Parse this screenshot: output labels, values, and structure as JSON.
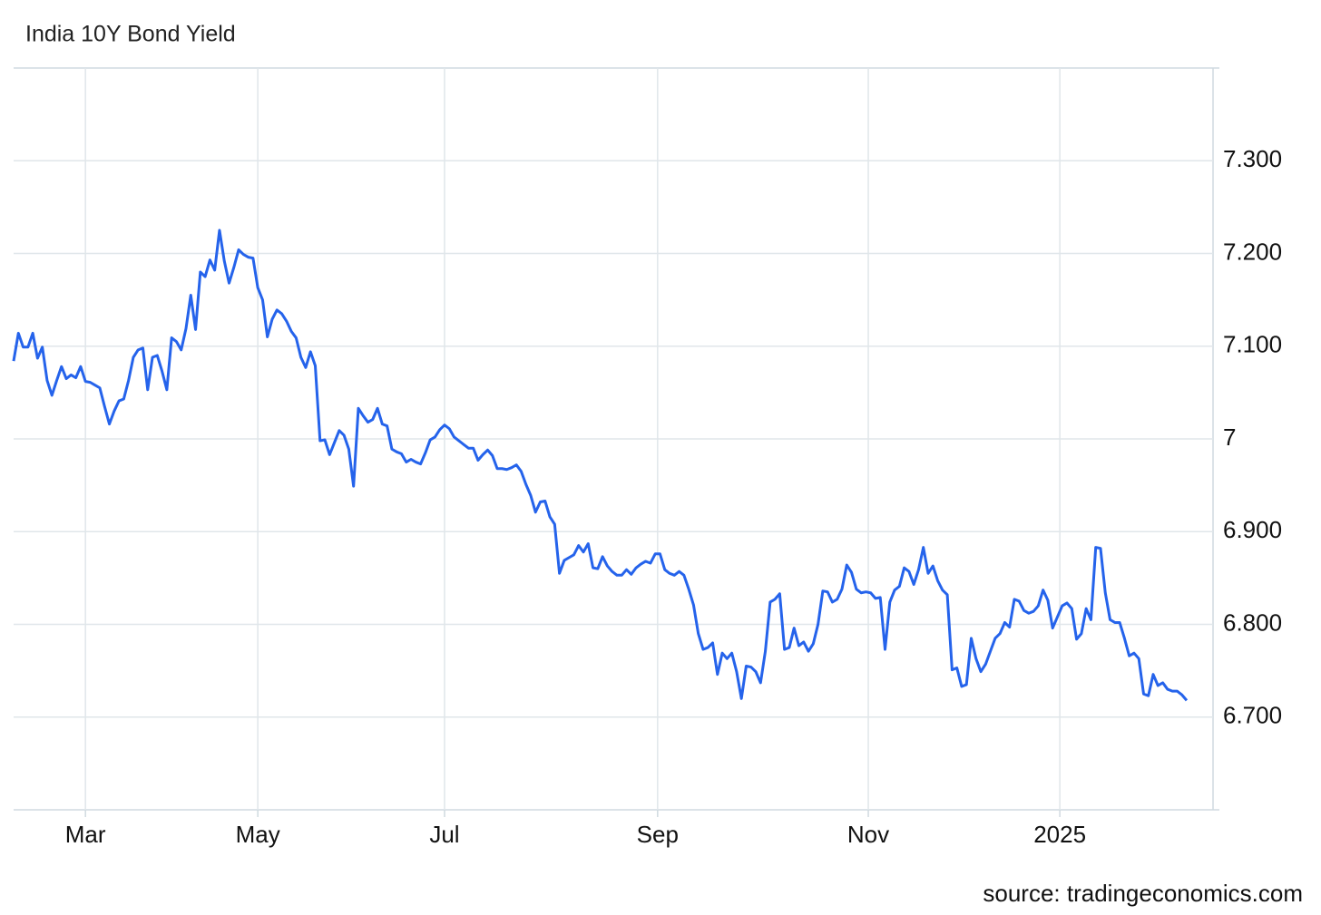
{
  "chart_data": {
    "type": "line",
    "title": "India 10Y Bond Yield",
    "source": "source: tradingeconomics.com",
    "color": "#2563eb",
    "grid": true,
    "xlim": [
      0,
      250.5
    ],
    "xticks": [
      {
        "value": 15,
        "label": "Mar"
      },
      {
        "value": 51,
        "label": "May"
      },
      {
        "value": 90,
        "label": "Jul"
      },
      {
        "value": 134.5,
        "label": "Sep"
      },
      {
        "value": 178.5,
        "label": "Nov"
      },
      {
        "value": 218.5,
        "label": "2025"
      }
    ],
    "ylim": [
      6.6,
      7.4
    ],
    "yticks": [
      {
        "value": 6.7,
        "label": "6.700"
      },
      {
        "value": 6.8,
        "label": "6.800"
      },
      {
        "value": 6.9,
        "label": "6.900"
      },
      7,
      {
        "value": 7.1,
        "label": "7.100"
      },
      {
        "value": 7.2,
        "label": "7.200"
      },
      {
        "value": 7.3,
        "label": "7.300"
      }
    ],
    "values": [
      7.084,
      7.114,
      7.099,
      7.099,
      7.114,
      7.087,
      7.099,
      7.063,
      7.047,
      7.063,
      7.078,
      7.065,
      7.069,
      7.066,
      7.078,
      7.062,
      7.061,
      7.058,
      7.055,
      7.035,
      7.016,
      7.03,
      7.041,
      7.043,
      7.063,
      7.088,
      7.096,
      7.098,
      7.053,
      7.088,
      7.09,
      7.073,
      7.053,
      7.109,
      7.105,
      7.096,
      7.119,
      7.155,
      7.118,
      7.18,
      7.175,
      7.193,
      7.182,
      7.225,
      7.192,
      7.168,
      7.185,
      7.204,
      7.199,
      7.196,
      7.195,
      7.163,
      7.15,
      7.11,
      7.129,
      7.139,
      7.135,
      7.127,
      7.116,
      7.109,
      7.088,
      7.077,
      7.094,
      7.079,
      6.998,
      6.999,
      6.983,
      6.996,
      7.009,
      7.004,
      6.989,
      6.949,
      7.033,
      7.025,
      7.018,
      7.021,
      7.033,
      7.016,
      7.014,
      6.989,
      6.986,
      6.984,
      6.975,
      6.978,
      6.975,
      6.973,
      6.985,
      6.999,
      7.002,
      7.01,
      7.015,
      7.011,
      7.002,
      6.998,
      6.994,
      6.99,
      6.99,
      6.977,
      6.983,
      6.988,
      6.982,
      6.968,
      6.968,
      6.967,
      6.969,
      6.972,
      6.965,
      6.951,
      6.939,
      6.921,
      6.932,
      6.933,
      6.916,
      6.908,
      6.855,
      6.869,
      6.872,
      6.875,
      6.885,
      6.878,
      6.887,
      6.861,
      6.86,
      6.873,
      6.863,
      6.857,
      6.853,
      6.853,
      6.859,
      6.854,
      6.861,
      6.865,
      6.868,
      6.866,
      6.876,
      6.876,
      6.859,
      6.855,
      6.853,
      6.857,
      6.853,
      6.838,
      6.821,
      6.79,
      6.773,
      6.775,
      6.78,
      6.746,
      6.769,
      6.763,
      6.769,
      6.749,
      6.72,
      6.755,
      6.754,
      6.749,
      6.737,
      6.771,
      6.824,
      6.827,
      6.833,
      6.773,
      6.775,
      6.796,
      6.777,
      6.781,
      6.771,
      6.779,
      6.8,
      6.836,
      6.835,
      6.824,
      6.827,
      6.838,
      6.864,
      6.856,
      6.838,
      6.834,
      6.835,
      6.834,
      6.828,
      6.829,
      6.773,
      6.824,
      6.837,
      6.841,
      6.861,
      6.857,
      6.843,
      6.859,
      6.883,
      6.855,
      6.863,
      6.847,
      6.837,
      6.832,
      6.751,
      6.753,
      6.733,
      6.735,
      6.785,
      6.763,
      6.749,
      6.757,
      6.771,
      6.785,
      6.79,
      6.802,
      6.797,
      6.827,
      6.825,
      6.815,
      6.812,
      6.814,
      6.82,
      6.837,
      6.826,
      6.796,
      6.808,
      6.82,
      6.823,
      6.817,
      6.784,
      6.79,
      6.817,
      6.805,
      6.883,
      6.882,
      6.834,
      6.805,
      6.802,
      6.802,
      6.785,
      6.766,
      6.769,
      6.763,
      6.725,
      6.723,
      6.746,
      6.734,
      6.737,
      6.73,
      6.728,
      6.728,
      6.724,
      6.718
    ]
  }
}
